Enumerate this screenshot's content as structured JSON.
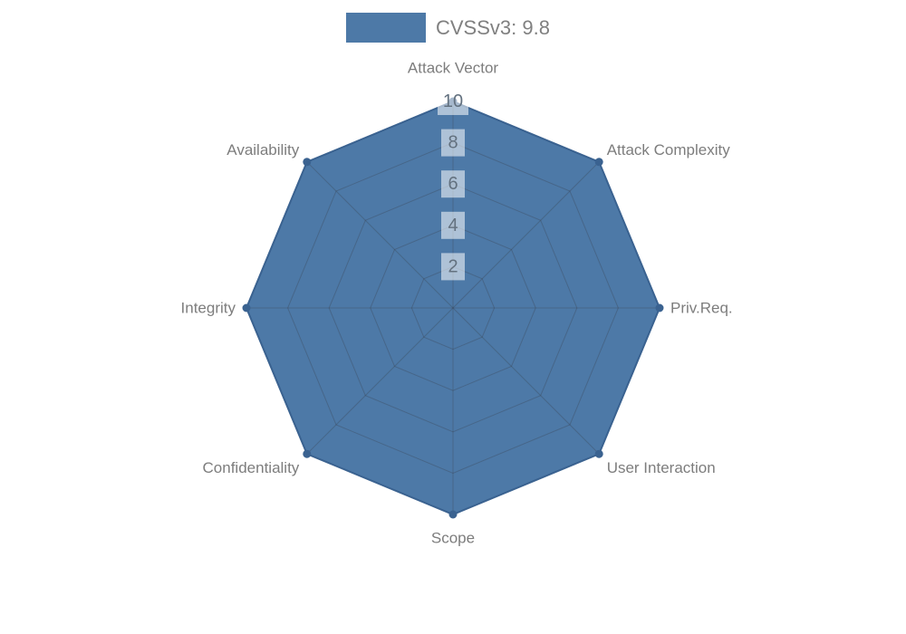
{
  "legend": {
    "label": "CVSSv3: 9.8",
    "swatch_color": "#4d79a7"
  },
  "chart_data": {
    "type": "radar",
    "categories": [
      "Attack Vector",
      "Attack Complexity",
      "Priv.Req.",
      "User Interaction",
      "Scope",
      "Confidentiality",
      "Integrity",
      "Availability"
    ],
    "series": [
      {
        "name": "CVSSv3: 9.8",
        "values": [
          10,
          10,
          10,
          10,
          10,
          10,
          10,
          10
        ]
      }
    ],
    "ticks": [
      2,
      4,
      6,
      8,
      10
    ],
    "rmax": 10,
    "legend_position": "top",
    "grid": "on",
    "fill_color": "#4d79a7",
    "line_color": "#3a6290",
    "marker_color": "#3a6290",
    "grid_line_color": "rgba(55,60,70,0.30)",
    "axis_label_color": "#7d7d7d",
    "tick_text_color": "#63717f",
    "tick_box_color": "rgba(255,255,255,0.55)"
  }
}
